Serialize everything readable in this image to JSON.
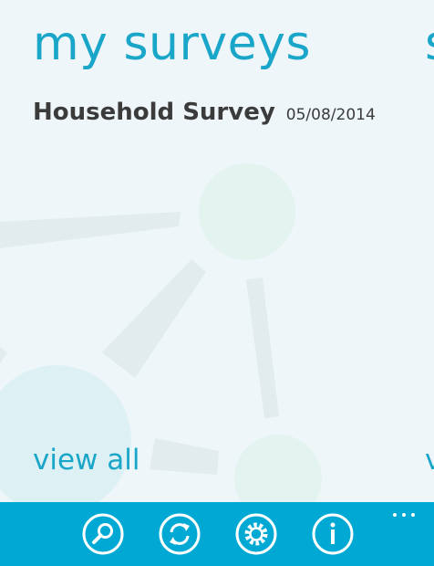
{
  "pivot": {
    "current_title": "my surveys",
    "next_title_peek": "s"
  },
  "survey": {
    "name": "Household Survey",
    "date": "05/08/2014"
  },
  "view_all": {
    "label": "view all",
    "next_label_peek": "v"
  },
  "app_bar": {
    "buttons": [
      "search-icon",
      "sync-icon",
      "settings-icon",
      "info-icon"
    ],
    "more_icon": "ellipsis-icon"
  },
  "colors": {
    "accent": "#1aa6c9",
    "app_bar": "#00a9d4",
    "background": "#eef6f9",
    "text": "#3b3b3b"
  }
}
